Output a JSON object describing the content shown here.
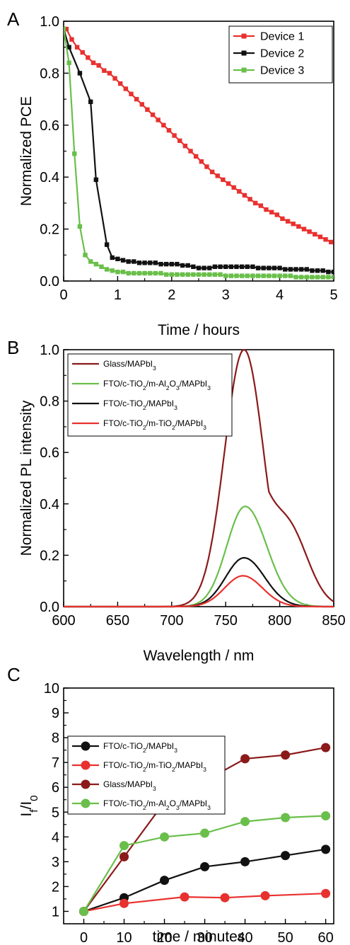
{
  "chart_data": [
    {
      "panel": "A",
      "type": "line",
      "xlabel": "Time / hours",
      "ylabel": "Normalized PCE",
      "xlim": [
        0,
        5
      ],
      "ylim": [
        0,
        1.0
      ],
      "x_ticks": [
        "0",
        "1",
        "2",
        "3",
        "4",
        "5"
      ],
      "y_ticks": [
        "0.0",
        "0.2",
        "0.4",
        "0.6",
        "0.8",
        "1.0"
      ],
      "legend_position": "top-right",
      "series": [
        {
          "name": "Device 1",
          "color": "#e8312f",
          "marker": "square",
          "x": [
            0.05,
            0.15,
            0.25,
            0.35,
            0.45,
            0.55,
            0.65,
            0.75,
            0.85,
            0.95,
            1.05,
            1.15,
            1.25,
            1.35,
            1.45,
            1.55,
            1.65,
            1.75,
            1.85,
            1.95,
            2.05,
            2.15,
            2.25,
            2.35,
            2.45,
            2.55,
            2.65,
            2.75,
            2.85,
            2.95,
            3.05,
            3.15,
            3.25,
            3.35,
            3.45,
            3.55,
            3.65,
            3.75,
            3.85,
            3.95,
            4.05,
            4.15,
            4.25,
            4.35,
            4.45,
            4.55,
            4.65,
            4.75,
            4.85,
            4.95
          ],
          "y": [
            0.97,
            0.93,
            0.9,
            0.88,
            0.86,
            0.84,
            0.83,
            0.81,
            0.8,
            0.78,
            0.76,
            0.74,
            0.72,
            0.7,
            0.68,
            0.66,
            0.64,
            0.62,
            0.6,
            0.58,
            0.56,
            0.54,
            0.52,
            0.5,
            0.48,
            0.46,
            0.44,
            0.42,
            0.405,
            0.39,
            0.375,
            0.36,
            0.345,
            0.33,
            0.315,
            0.3,
            0.29,
            0.275,
            0.265,
            0.255,
            0.24,
            0.23,
            0.22,
            0.21,
            0.2,
            0.19,
            0.18,
            0.17,
            0.16,
            0.15
          ]
        },
        {
          "name": "Device 2",
          "color": "#111111",
          "marker": "square",
          "x": [
            0,
            0.1,
            0.3,
            0.5,
            0.6,
            0.8,
            0.9,
            1.0,
            1.1,
            1.2,
            1.3,
            1.4,
            1.5,
            1.6,
            1.7,
            1.8,
            1.9,
            2.0,
            2.1,
            2.2,
            2.3,
            2.4,
            2.5,
            2.6,
            2.7,
            2.8,
            2.9,
            3.0,
            3.1,
            3.2,
            3.3,
            3.4,
            3.5,
            3.6,
            3.7,
            3.8,
            3.9,
            4.0,
            4.1,
            4.2,
            4.3,
            4.4,
            4.5,
            4.6,
            4.7,
            4.8,
            4.9,
            5.0
          ],
          "y": [
            0.97,
            0.9,
            0.8,
            0.69,
            0.39,
            0.14,
            0.09,
            0.085,
            0.08,
            0.075,
            0.075,
            0.07,
            0.07,
            0.07,
            0.07,
            0.065,
            0.065,
            0.065,
            0.065,
            0.06,
            0.06,
            0.055,
            0.05,
            0.05,
            0.05,
            0.055,
            0.055,
            0.055,
            0.055,
            0.055,
            0.055,
            0.055,
            0.055,
            0.05,
            0.05,
            0.05,
            0.05,
            0.05,
            0.045,
            0.045,
            0.045,
            0.045,
            0.045,
            0.04,
            0.04,
            0.04,
            0.035,
            0.035
          ]
        },
        {
          "name": "Device 3",
          "color": "#6abf4b",
          "marker": "square",
          "x": [
            0,
            0.1,
            0.2,
            0.3,
            0.4,
            0.5,
            0.6,
            0.7,
            0.8,
            0.9,
            1.0,
            1.1,
            1.2,
            1.3,
            1.4,
            1.5,
            1.6,
            1.7,
            1.8,
            1.9,
            2.0,
            2.1,
            2.2,
            2.3,
            2.4,
            2.5,
            2.6,
            2.7,
            2.8,
            2.9,
            3.0,
            3.1,
            3.2,
            3.3,
            3.4,
            3.5,
            3.6,
            3.7,
            3.8,
            3.9,
            4.0,
            4.1,
            4.2,
            4.3,
            4.4,
            4.5,
            4.6,
            4.7,
            4.8,
            4.9,
            5.0
          ],
          "y": [
            0.97,
            0.84,
            0.49,
            0.21,
            0.1,
            0.075,
            0.065,
            0.055,
            0.045,
            0.04,
            0.035,
            0.035,
            0.03,
            0.03,
            0.03,
            0.03,
            0.03,
            0.03,
            0.03,
            0.025,
            0.025,
            0.025,
            0.025,
            0.025,
            0.025,
            0.025,
            0.025,
            0.025,
            0.025,
            0.025,
            0.02,
            0.02,
            0.02,
            0.02,
            0.02,
            0.02,
            0.02,
            0.02,
            0.02,
            0.02,
            0.02,
            0.02,
            0.02,
            0.015,
            0.015,
            0.015,
            0.015,
            0.015,
            0.015,
            0.015,
            0.015
          ]
        }
      ]
    },
    {
      "panel": "B",
      "type": "line",
      "xlabel": "Wavelength / nm",
      "ylabel": "Normalized PL intensity",
      "xlim": [
        600,
        850
      ],
      "ylim": [
        0,
        1.0
      ],
      "x_ticks": [
        "600",
        "650",
        "700",
        "750",
        "800",
        "850"
      ],
      "y_ticks": [
        "0.0",
        "0.2",
        "0.4",
        "0.6",
        "0.8",
        "1.0"
      ],
      "legend_position": "top-left",
      "series": [
        {
          "name": "Glass/MAPbI3",
          "label_parts": [
            [
              "Glass/MAPbI",
              ""
            ],
            [
              "3",
              "sub"
            ]
          ],
          "color": "#8b1a1a",
          "peak": 1.0,
          "center": 767,
          "sigma_left": 18,
          "sigma_right": 18,
          "shoulder": {
            "amp": 0.3,
            "center": 808,
            "sigma": 18
          }
        },
        {
          "name": "FTO/c-TiO2/m-Al2O3/MAPbI3",
          "label_parts": [
            [
              "FTO/c-TiO",
              ""
            ],
            [
              "2",
              "sub"
            ],
            [
              "/m-Al",
              ""
            ],
            [
              "2",
              "sub"
            ],
            [
              "O",
              ""
            ],
            [
              "3",
              "sub"
            ],
            [
              "/MAPbI",
              ""
            ],
            [
              "3",
              "sub"
            ]
          ],
          "color": "#6abf4b",
          "peak": 0.39,
          "center": 768,
          "sigma_left": 17,
          "sigma_right": 20
        },
        {
          "name": "FTO/c-TiO2/MAPbI3",
          "label_parts": [
            [
              "FTO/c-TiO",
              ""
            ],
            [
              "2",
              "sub"
            ],
            [
              "/MAPbI",
              ""
            ],
            [
              "3",
              "sub"
            ]
          ],
          "color": "#111111",
          "peak": 0.19,
          "center": 767,
          "sigma_left": 17,
          "sigma_right": 19
        },
        {
          "name": "FTO/c-TiO2/m-TiO2/MAPbI3",
          "label_parts": [
            [
              "FTO/c-TiO",
              ""
            ],
            [
              "2",
              "sub"
            ],
            [
              "/m-TiO",
              ""
            ],
            [
              "2",
              "sub"
            ],
            [
              "/MAPbI",
              ""
            ],
            [
              "3",
              "sub"
            ]
          ],
          "color": "#e8312f",
          "peak": 0.12,
          "center": 766,
          "sigma_left": 17,
          "sigma_right": 18
        }
      ]
    },
    {
      "panel": "C",
      "type": "line",
      "xlabel": "time / minutes",
      "ylabel": "I_f/I_0",
      "ylabel_parts": [
        [
          "I",
          ""
        ],
        [
          "f",
          "sub"
        ],
        [
          "/I",
          ""
        ],
        [
          "0",
          "sub"
        ]
      ],
      "xlim": [
        -5,
        62
      ],
      "ylim": [
        0.5,
        10
      ],
      "x_ticks": [
        "0",
        "10",
        "20",
        "30",
        "40",
        "50",
        "60"
      ],
      "y_ticks": [
        "1",
        "2",
        "3",
        "4",
        "5",
        "6",
        "7",
        "8",
        "9",
        "10"
      ],
      "legend_position": "top-left",
      "series": [
        {
          "name": "FTO/c-TiO2/MAPbI3",
          "label_parts": [
            [
              "FTO/c-TiO",
              ""
            ],
            [
              "2",
              "sub"
            ],
            [
              "/MAPbI",
              ""
            ],
            [
              "3",
              "sub"
            ]
          ],
          "color": "#111111",
          "marker": "circle",
          "x": [
            0,
            10,
            20,
            30,
            40,
            50,
            60
          ],
          "y": [
            1.0,
            1.55,
            2.25,
            2.8,
            3.0,
            3.25,
            3.5
          ]
        },
        {
          "name": "FTO/c-TiO2/m-TiO2/MAPbI3",
          "label_parts": [
            [
              "FTO/c-TiO",
              ""
            ],
            [
              "2",
              "sub"
            ],
            [
              "/m-TiO",
              ""
            ],
            [
              "2",
              "sub"
            ],
            [
              "/MAPbI",
              ""
            ],
            [
              "3",
              "sub"
            ]
          ],
          "color": "#e8312f",
          "marker": "circle",
          "x": [
            0,
            10,
            25,
            35,
            45,
            60
          ],
          "y": [
            1.0,
            1.32,
            1.58,
            1.55,
            1.63,
            1.72
          ]
        },
        {
          "name": "Glass/MAPbI3",
          "label_parts": [
            [
              "Glass/MAPbI",
              ""
            ],
            [
              "3",
              "sub"
            ]
          ],
          "color": "#8b1a1a",
          "marker": "circle",
          "x": [
            0,
            10,
            20,
            30,
            40,
            50,
            60
          ],
          "y": [
            1.0,
            3.2,
            5.4,
            6.25,
            7.15,
            7.3,
            7.6
          ]
        },
        {
          "name": "FTO/c-TiO2/m-Al2O3/MAPbI3",
          "label_parts": [
            [
              "FTO/c-TiO",
              ""
            ],
            [
              "2",
              "sub"
            ],
            [
              "/m-Al",
              ""
            ],
            [
              "2",
              "sub"
            ],
            [
              "O",
              ""
            ],
            [
              "3",
              "sub"
            ],
            [
              "/MAPbI",
              ""
            ],
            [
              "3",
              "sub"
            ]
          ],
          "color": "#6abf4b",
          "marker": "circle",
          "x": [
            0,
            10,
            20,
            30,
            40,
            50,
            60
          ],
          "y": [
            1.0,
            3.65,
            4.0,
            4.15,
            4.62,
            4.78,
            4.85
          ]
        }
      ]
    }
  ]
}
